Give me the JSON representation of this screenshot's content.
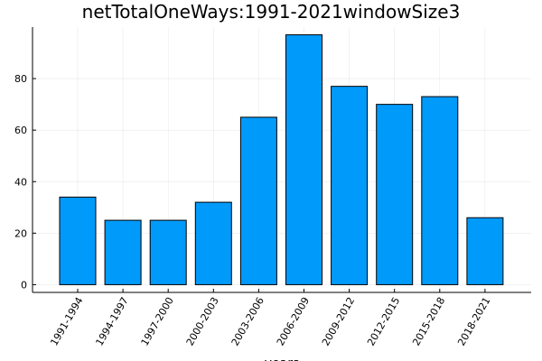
{
  "chart_data": {
    "type": "bar",
    "title": "netTotalOneWays:1991-2021windowSize3",
    "xlabel": "years",
    "ylabel": "",
    "categories": [
      "1991-1994",
      "1994-1997",
      "1997-2000",
      "2000-2003",
      "2003-2006",
      "2006-2009",
      "2009-2012",
      "2012-2015",
      "2015-2018",
      "2018-2021"
    ],
    "values": [
      34,
      25,
      25,
      32,
      65,
      97,
      77,
      70,
      73,
      26
    ],
    "ylim": [
      -3,
      100
    ],
    "yticks": [
      0,
      20,
      40,
      60,
      80
    ],
    "grid": true,
    "legend": "none",
    "bar_color": "#009AFA"
  }
}
